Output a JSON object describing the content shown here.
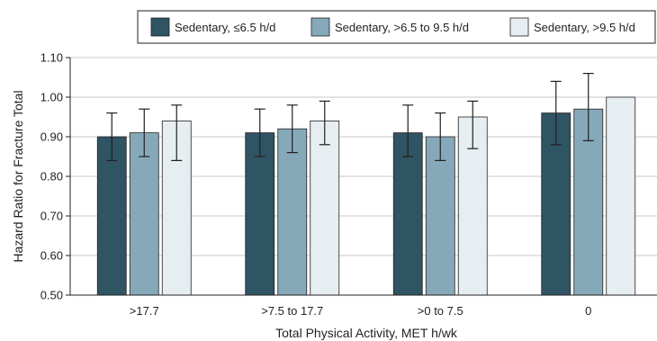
{
  "chart_data": {
    "type": "bar",
    "xlabel": "Total Physical Activity, MET h/wk",
    "ylabel": "Hazard Ratio for Fracture Total",
    "ylim": [
      0.5,
      1.1
    ],
    "yticks": [
      "0.50",
      "0.60",
      "0.70",
      "0.80",
      "0.90",
      "1.00",
      "1.10"
    ],
    "grid": "horizontal",
    "legend_position": "top-right",
    "categories": [
      ">17.7",
      ">7.5 to 17.7",
      ">0 to 7.5",
      "0"
    ],
    "series": [
      {
        "name": "Sedentary, ≤6.5 h/d",
        "color": "#2f5463",
        "values": [
          0.9,
          0.91,
          0.91,
          0.96
        ],
        "ci_low": [
          0.84,
          0.85,
          0.85,
          0.88
        ],
        "ci_high": [
          0.96,
          0.97,
          0.98,
          1.04
        ]
      },
      {
        "name": "Sedentary, >6.5 to 9.5 h/d",
        "color": "#86a9b9",
        "values": [
          0.91,
          0.92,
          0.9,
          0.97
        ],
        "ci_low": [
          0.85,
          0.86,
          0.84,
          0.89
        ],
        "ci_high": [
          0.97,
          0.98,
          0.96,
          1.06
        ]
      },
      {
        "name": "Sedentary, >9.5 h/d",
        "color": "#e6eef1",
        "values": [
          0.94,
          0.94,
          0.95,
          1.0
        ],
        "ci_low": [
          0.84,
          0.88,
          0.87,
          null
        ],
        "ci_high": [
          0.98,
          0.99,
          0.99,
          null
        ]
      }
    ]
  }
}
